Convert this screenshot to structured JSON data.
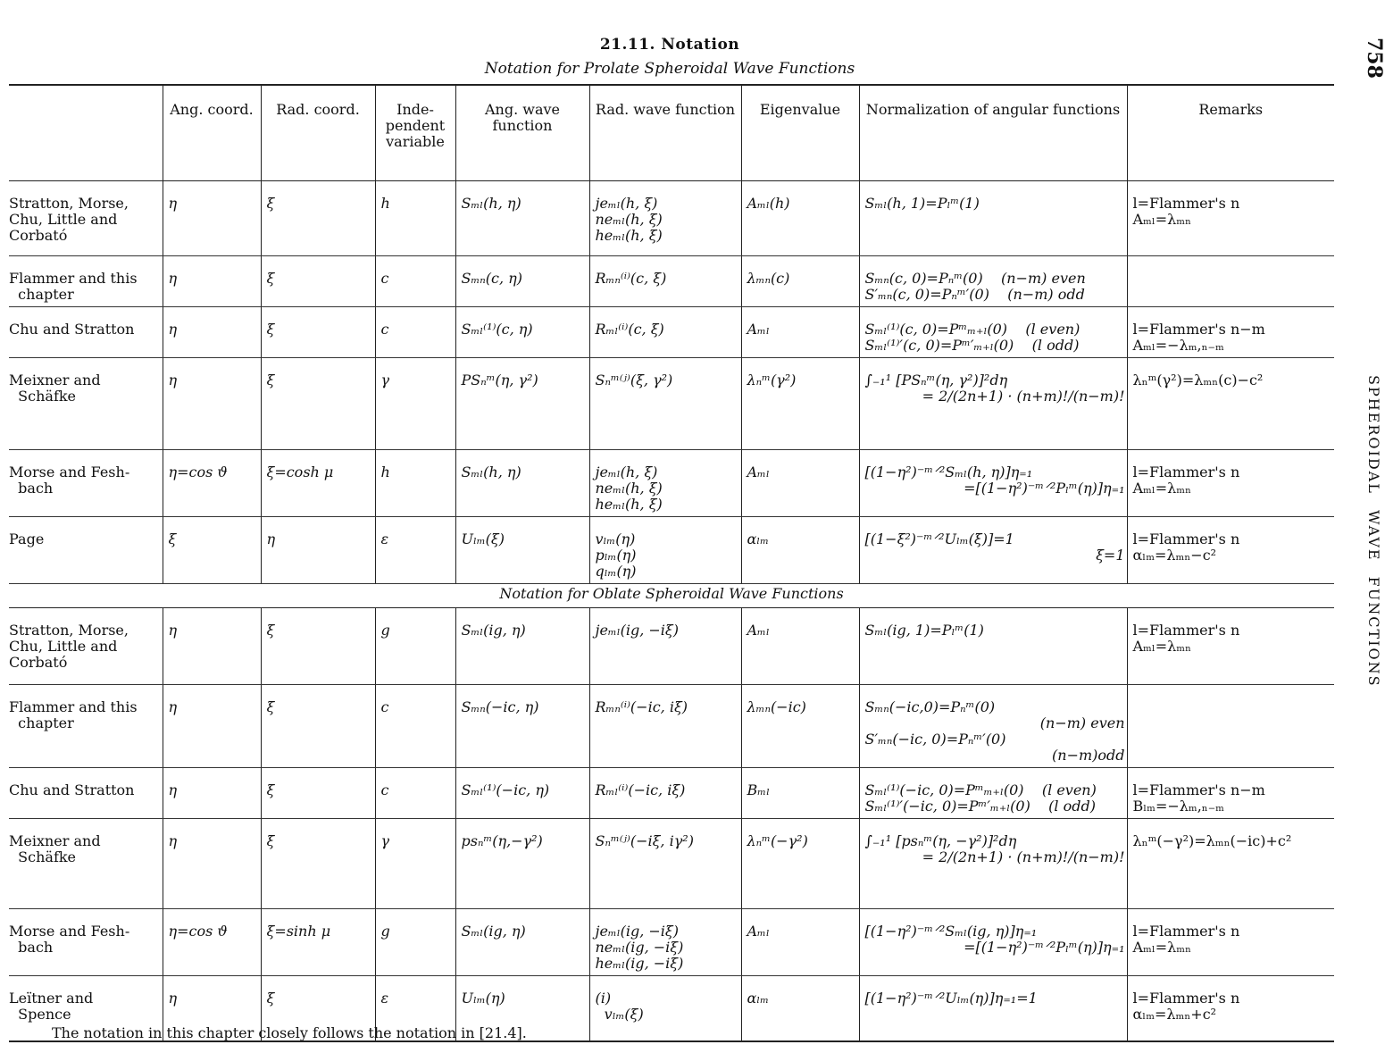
{
  "page": {
    "title": "21.11. Notation",
    "page_number": "758",
    "running_head": "SPHEROIDAL WAVE FUNCTIONS",
    "footnote": "The notation in this chapter closely follows the notation in [21.4]."
  },
  "table": {
    "columns": [
      "Ang. coord.",
      "Rad. coord.",
      "Inde-pendent variable",
      "Ang. wave function",
      "Rad. wave function",
      "Eigenvalue",
      "Normalization of angular functions",
      "Remarks"
    ],
    "sections": [
      {
        "title": "Notation for Prolate Spheroidal Wave Functions",
        "rows": [
          {
            "author": [
              "Stratton, Morse,",
              "Chu, Little and",
              "Corbató"
            ],
            "ang": "η",
            "rad": "ξ",
            "var": "h",
            "angfn": [
              "Sₘₗ(h, η)"
            ],
            "radfn": [
              "jeₘₗ(h, ξ)",
              "neₘₗ(h, ξ)",
              "heₘₗ(h, ξ)"
            ],
            "eig": "Aₘₗ(h)",
            "norm": [
              "Sₘₗ(h, 1)=Pₗᵐ(1)"
            ],
            "remarks": [
              "l=Flammer's n",
              "Aₘₗ=λₘₙ"
            ],
            "h": 84
          },
          {
            "author": [
              "Flammer and this",
              "  chapter"
            ],
            "ang": "η",
            "rad": "ξ",
            "var": "c",
            "angfn": [
              "Sₘₙ(c, η)"
            ],
            "radfn": [
              "Rₘₙ⁽ⁱ⁾(c, ξ)"
            ],
            "eig": "λₘₙ(c)",
            "norm": [
              "Sₘₙ(c, 0)=Pₙᵐ(0)    (n−m) even",
              "S′ₘₙ(c, 0)=Pₙᵐ′(0)    (n−m) odd"
            ],
            "remarks": [],
            "h": 55
          },
          {
            "author": [
              "Chu and Stratton"
            ],
            "ang": "η",
            "rad": "ξ",
            "var": "c",
            "angfn": [
              "Sₘₗ⁽¹⁾(c, η)"
            ],
            "radfn": [
              "Rₘₗ⁽ⁱ⁾(c, ξ)"
            ],
            "eig": "Aₘₗ",
            "norm": [
              "Sₘₗ⁽¹⁾(c, 0)=Pᵐₘ₊ₗ(0)    (l even)",
              "Sₘₗ⁽¹⁾′(c, 0)=Pᵐ′ₘ₊ₗ(0)    (l odd)"
            ],
            "remarks": [
              "l=Flammer's n−m",
              "Aₘₗ=−λₘ,ₙ₋ₘ"
            ],
            "h": 55
          },
          {
            "author": [
              "Meixner and",
              "  Schäfke"
            ],
            "ang": "η",
            "rad": "ξ",
            "var": "γ",
            "angfn": [
              "PSₙᵐ(η, γ²)"
            ],
            "radfn": [
              "Sₙᵐ⁽ʲ⁾(ξ, γ²)"
            ],
            "eig": "λₙᵐ(γ²)",
            "norm": [
              "∫₋₁¹ [PSₙᵐ(η, γ²)]²dη",
              "= 2/(2n+1) · (n+m)!/(n−m)!"
            ],
            "remarks": [
              "λₙᵐ(γ²)=λₘₙ(c)−c²"
            ],
            "h": 103
          },
          {
            "author": [
              "Morse and Fesh-",
              "  bach"
            ],
            "ang": "η=cos ϑ",
            "rad": "ξ=cosh μ",
            "var": "h",
            "angfn": [
              "Sₘₗ(h, η)"
            ],
            "radfn": [
              "jeₘₗ(h, ξ)",
              "neₘₗ(h, ξ)",
              "heₘₗ(h, ξ)"
            ],
            "eig": "Aₘₗ",
            "norm": [
              "[(1−η²)⁻ᵐᐟ²Sₘₗ(h, η)]η₌₁",
              "=[(1−η²)⁻ᵐᐟ²Pₗᵐ(η)]η₌₁"
            ],
            "remarks": [
              "l=Flammer's n",
              "Aₘₗ=λₘₙ"
            ],
            "h": 73
          },
          {
            "author": [
              "Page"
            ],
            "ang": "ξ",
            "rad": "η",
            "var": "ε",
            "angfn": [
              "Uₗₘ(ξ)"
            ],
            "radfn": [
              "vₗₘ(η)",
              "pₗₘ(η)",
              "qₗₘ(η)"
            ],
            "eig": "αₗₘ",
            "norm": [
              "[(1−ξ²)⁻ᵐᐟ²Uₗₘ(ξ)]=1",
              "ξ=1"
            ],
            "remarks": [
              "l=Flammer's n",
              "αₗₘ=λₘₙ−c²"
            ],
            "h": 74
          }
        ]
      },
      {
        "title": "Notation for Oblate Spheroidal Wave Functions",
        "rows": [
          {
            "author": [
              "Stratton, Morse,",
              "Chu, Little and",
              "Corbató"
            ],
            "ang": "η",
            "rad": "ξ",
            "var": "g",
            "angfn": [
              "Sₘₗ(ig, η)"
            ],
            "radfn": [
              "jeₘₗ(ig, −iξ)"
            ],
            "eig": "Aₘₗ",
            "norm": [
              "Sₘₗ(ig, 1)=Pₗᵐ(1)"
            ],
            "remarks": [
              "l=Flammer's n",
              "Aₘₗ=λₘₙ"
            ],
            "h": 86
          },
          {
            "author": [
              "Flammer and this",
              "  chapter"
            ],
            "ang": "η",
            "rad": "ξ",
            "var": "c",
            "angfn": [
              "Sₘₙ(−ic, η)"
            ],
            "radfn": [
              "Rₘₙ⁽ⁱ⁾(−ic, iξ)"
            ],
            "eig": "λₘₙ(−ic)",
            "norm": [
              "Sₘₙ(−ic,0)=Pₙᵐ(0)",
              "(n−m) even",
              "S′ₘₙ(−ic, 0)=Pₙᵐ′(0)",
              "(n−m)odd"
            ],
            "remarks": [],
            "h": 93
          },
          {
            "author": [
              "Chu and Stratton"
            ],
            "ang": "η",
            "rad": "ξ",
            "var": "c",
            "angfn": [
              "Sₘₗ⁽¹⁾(−ic, η)"
            ],
            "radfn": [
              "Rₘₗ⁽ⁱ⁾(−ic, iξ)"
            ],
            "eig": "Bₘₗ",
            "norm": [
              "Sₘₗ⁽¹⁾(−ic, 0)=Pᵐₘ₊ₗ(0)    (l even)",
              "Sₘₗ⁽¹⁾′(−ic, 0)=Pᵐ′ₘ₊ₗ(0)    (l odd)"
            ],
            "remarks": [
              "l=Flammer's n−m",
              "Bₗₘ=−λₘ,ₙ₋ₘ"
            ],
            "h": 55
          },
          {
            "author": [
              "Meixner and",
              "  Schäfke"
            ],
            "ang": "η",
            "rad": "ξ",
            "var": "γ",
            "angfn": [
              "psₙᵐ(η,−γ²)"
            ],
            "radfn": [
              "Sₙᵐ⁽ʲ⁾(−iξ, iγ²)"
            ],
            "eig": "λₙᵐ(−γ²)",
            "norm": [
              "∫₋₁¹ [psₙᵐ(η, −γ²)]²dη",
              "= 2/(2n+1) · (n+m)!/(n−m)!"
            ],
            "remarks": [
              "λₙᵐ(−γ²)=λₘₙ(−ic)+c²"
            ],
            "h": 101
          },
          {
            "author": [
              "Morse and Fesh-",
              "  bach"
            ],
            "ang": "η=cos ϑ",
            "rad": "ξ=sinh μ",
            "var": "g",
            "angfn": [
              "Sₘₗ(ig, η)"
            ],
            "radfn": [
              "jeₘₗ(ig, −iξ)",
              "neₘₗ(ig, −iξ)",
              "heₘₗ(ig, −iξ)"
            ],
            "eig": "Aₘₗ",
            "norm": [
              "[(1−η²)⁻ᵐᐟ²Sₘₗ(ig, η)]η₌₁",
              "=[(1−η²)⁻ᵐᐟ²Pₗᵐ(η)]η₌₁"
            ],
            "remarks": [
              "l=Flammer's n",
              "Aₘₗ=λₘₙ"
            ],
            "h": 73
          },
          {
            "author": [
              "Leïtner and",
              "  Spence"
            ],
            "ang": "η",
            "rad": "ξ",
            "var": "ε",
            "angfn": [
              "Uₗₘ(η)"
            ],
            "radfn": [
              "(i)",
              "  vₗₘ(ξ)"
            ],
            "eig": "αₗₘ",
            "norm": [
              "[(1−η²)⁻ᵐᐟ²Uₗₘ(η)]η₌₁=1"
            ],
            "remarks": [
              "l=Flammer's n",
              "αₗₘ=λₘₙ+c²"
            ],
            "h": 73
          }
        ]
      }
    ]
  }
}
